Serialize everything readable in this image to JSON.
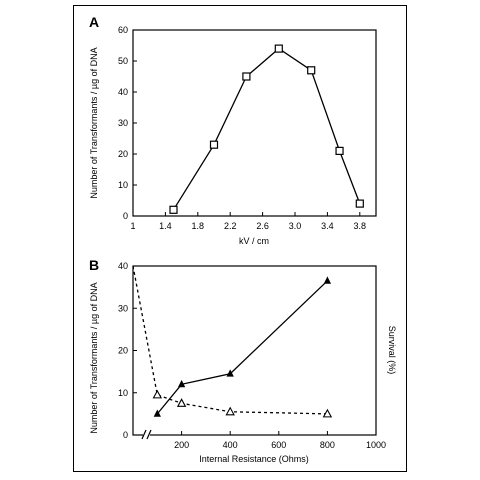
{
  "chart_data": [
    {
      "panel_label": "A",
      "type": "line",
      "xlabel": "kV / cm",
      "ylabel": "Number of Transformants / µg of DNA",
      "xlim": [
        1.0,
        4.0
      ],
      "ylim": [
        0,
        60
      ],
      "x_ticks": [
        "1",
        "1.4",
        "1.8",
        "2.2",
        "2.6",
        "3.0",
        "3.4",
        "3.8"
      ],
      "y_ticks": [
        "0",
        "10",
        "20",
        "30",
        "40",
        "50",
        "60"
      ],
      "series": [
        {
          "marker": "open-square",
          "line": "solid",
          "x": [
            1.5,
            2.0,
            2.4,
            2.8,
            3.2,
            3.55,
            3.8
          ],
          "y": [
            2,
            23,
            45,
            54,
            47,
            21,
            4
          ]
        }
      ]
    },
    {
      "panel_label": "B",
      "type": "line",
      "xlabel": "Internal Resistance (Ohms)",
      "ylabel": "Number of Transformants / µg of DNA",
      "ylabel_right": "Survival (%)",
      "xlim": [
        0,
        1000
      ],
      "ylim": [
        0,
        40
      ],
      "axis_break": true,
      "x_ticks": [
        "200",
        "400",
        "600",
        "800",
        "1000"
      ],
      "y_ticks": [
        "0",
        "10",
        "20",
        "30",
        "40"
      ],
      "series": [
        {
          "marker": "filled-triangle",
          "line": "solid",
          "x": [
            100,
            200,
            400,
            800
          ],
          "y": [
            5,
            12,
            14.5,
            36.5
          ]
        },
        {
          "marker": "open-triangle",
          "line": "dashed",
          "x": [
            0,
            100,
            200,
            400,
            800
          ],
          "y": [
            40,
            9.5,
            7.5,
            5.5,
            5
          ]
        }
      ]
    }
  ]
}
